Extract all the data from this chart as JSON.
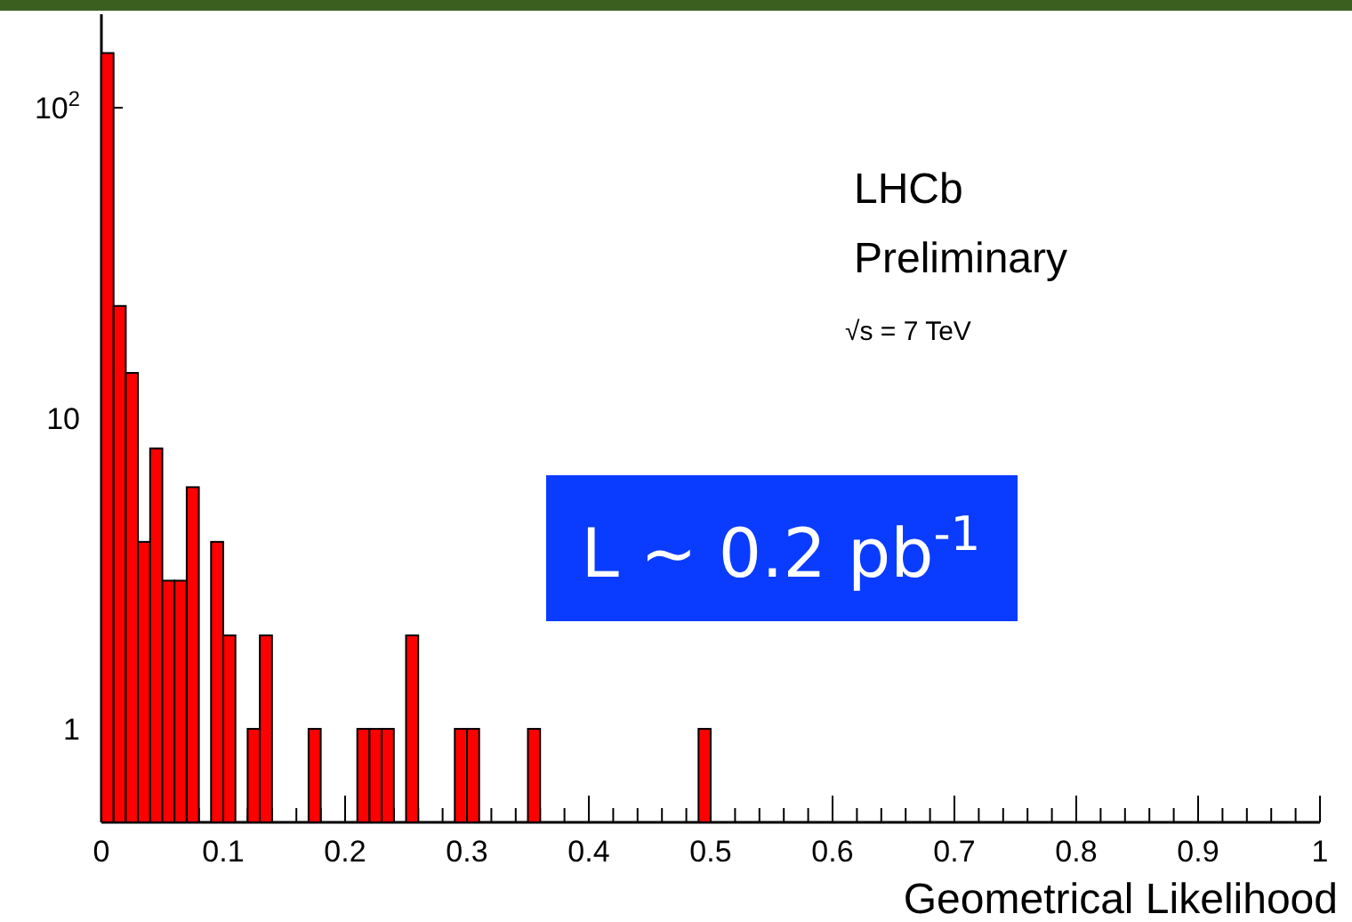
{
  "chart_data": {
    "type": "histogram",
    "xlabel": "Geometrical Likelihood",
    "annotations": [
      "LHCb",
      "Preliminary",
      "√s = 7 TeV",
      "L ~ 0.2 pb$^{-1}$"
    ],
    "bins": [
      0,
      0.01,
      0.02,
      0.03,
      0.04,
      0.05,
      0.06,
      0.07,
      0.08,
      0.09,
      0.1,
      0.11,
      0.12,
      0.13,
      0.14,
      0.15,
      0.16,
      0.17,
      0.18,
      0.19,
      0.2,
      0.21,
      0.22,
      0.23,
      0.24,
      0.25,
      0.26,
      0.27,
      0.28,
      0.29,
      0.3,
      0.31,
      0.32,
      0.33,
      0.34,
      0.35,
      0.36,
      0.37,
      0.38,
      0.39,
      0.4,
      0.41,
      0.42,
      0.43,
      0.44,
      0.45,
      0.46,
      0.47,
      0.48,
      0.49,
      0.5
    ],
    "values": [
      150,
      23,
      14,
      4,
      8,
      3,
      3,
      6,
      null,
      4,
      2,
      null,
      1,
      2,
      null,
      null,
      null,
      1,
      null,
      null,
      null,
      1,
      1,
      1,
      null,
      2,
      null,
      null,
      null,
      1,
      1,
      null,
      null,
      null,
      null,
      1,
      null,
      null,
      null,
      null,
      null,
      null,
      null,
      null,
      null,
      null,
      null,
      null,
      null,
      1
    ],
    "color": "#ff0000",
    "log": true,
    "xlim": [
      0,
      1
    ],
    "ylim": [
      0.5,
      200
    ],
    "xticks": [
      0,
      0.1,
      0.2,
      0.3,
      0.4,
      0.5,
      0.6,
      0.7,
      0.8,
      0.9,
      1,
      {
        "value": 0.02,
        "label": null
      },
      {
        "value": 0.04,
        "label": null
      },
      {
        "value": 0.06,
        "label": null
      },
      {
        "value": 0.08,
        "label": null
      },
      {
        "value": 0.12,
        "label": null
      },
      {
        "value": 0.14,
        "label": null
      },
      {
        "value": 0.16,
        "label": null
      },
      {
        "value": 0.18,
        "label": null
      },
      {
        "value": 0.22,
        "label": null
      },
      {
        "value": 0.24,
        "label": null
      },
      {
        "value": 0.26,
        "label": null
      },
      {
        "value": 0.28,
        "label": null
      },
      {
        "value": 0.32,
        "label": null
      },
      {
        "value": 0.34,
        "label": null
      },
      {
        "value": 0.36,
        "label": null
      },
      {
        "value": 0.38,
        "label": null
      },
      {
        "value": 0.42,
        "label": null
      },
      {
        "value": 0.44,
        "label": null
      },
      {
        "value": 0.46,
        "label": null
      },
      {
        "value": 0.48,
        "label": null
      },
      {
        "value": 0.52,
        "label": null
      },
      {
        "value": 0.54,
        "label": null
      },
      {
        "value": 0.56,
        "label": null
      },
      {
        "value": 0.58,
        "label": null
      },
      {
        "value": 0.62,
        "label": null
      },
      {
        "value": 0.64,
        "label": null
      },
      {
        "value": 0.66,
        "label": null
      },
      {
        "value": 0.68,
        "label": null
      },
      {
        "value": 0.72,
        "label": null
      },
      {
        "value": 0.74,
        "label": null
      },
      {
        "value": 0.76,
        "label": null
      },
      {
        "value": 0.78,
        "label": null
      },
      {
        "value": 0.82,
        "label": null
      },
      {
        "value": 0.84,
        "label": null
      },
      {
        "value": 0.86,
        "label": null
      },
      {
        "value": 0.88,
        "label": null
      },
      {
        "value": 0.92,
        "label": null
      },
      {
        "value": 0.94,
        "label": null
      },
      {
        "value": 0.96,
        "label": null
      },
      {
        "value": 0.98,
        "label": null
      }
    ],
    "yticks": [
      1,
      10,
      {
        "value": 100,
        "label": "10$^{2}$"
      }
    ]
  }
}
